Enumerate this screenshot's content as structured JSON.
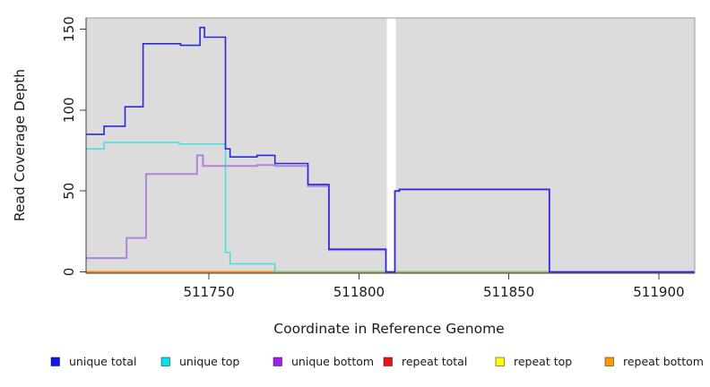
{
  "figure": {
    "background": "#ffffff",
    "plot_background": "#dcdcdc"
  },
  "chart_data": {
    "type": "line",
    "subtype": "step-after-coverage",
    "title": "",
    "xlabel": "Coordinate in Reference Genome",
    "ylabel": "Read Coverage Depth",
    "xlim": [
      511709,
      511912
    ],
    "ylim": [
      0,
      157
    ],
    "x_ticks": [
      511750,
      511800,
      511850,
      511900
    ],
    "x_tick_labels": [
      "511750",
      "511800",
      "511850",
      "511900"
    ],
    "y_ticks": [
      0,
      50,
      100,
      150
    ],
    "y_tick_labels": [
      "0",
      "50",
      "100",
      "150"
    ],
    "grid": false,
    "legend_position": "bottom",
    "gap_mask": {
      "x0": 511809.3,
      "x1": 511812.3,
      "color": "#ffffff"
    },
    "series": [
      {
        "name": "repeat total",
        "line_color": "#e01414",
        "width": 1.4,
        "points": [
          [
            511709,
            0
          ]
        ],
        "end_x": 511912
      },
      {
        "name": "repeat top",
        "line_color": "#f2f214",
        "width": 1.4,
        "points": [
          [
            511709,
            0
          ]
        ],
        "end_x": 511912
      },
      {
        "name": "repeat bottom",
        "line_color": "#ff8c00",
        "width": 1.7,
        "points": [
          [
            511709,
            0
          ]
        ],
        "end_x": 511912
      },
      {
        "name": "unlabeled green zero line",
        "line_color": "#7cc87c",
        "width": 1.4,
        "points": [
          [
            511772,
            0
          ]
        ],
        "end_x": 511912
      },
      {
        "name": "unique top",
        "line_color": "#45dde4",
        "width": 1.5,
        "points": [
          [
            511709,
            76
          ],
          [
            511715,
            80
          ],
          [
            511740,
            79
          ],
          [
            511755.5,
            12
          ],
          [
            511757,
            5
          ],
          [
            511772,
            0
          ]
        ],
        "end_x": 511772
      },
      {
        "name": "unique bottom",
        "line_color": "#b183d8",
        "width": 2.0,
        "points": [
          [
            511709,
            8.5
          ],
          [
            511722.5,
            21
          ],
          [
            511729,
            60.5
          ],
          [
            511746,
            72
          ],
          [
            511748,
            65.5
          ],
          [
            511766,
            66
          ],
          [
            511772,
            65.5
          ],
          [
            511783,
            53
          ],
          [
            511790,
            13.5
          ],
          [
            511809,
            0
          ],
          [
            511812,
            50
          ],
          [
            511813.5,
            51
          ],
          [
            511863.5,
            0
          ]
        ],
        "end_x": 511912
      },
      {
        "name": "unique total",
        "line_color": "#2828dd",
        "width": 1.6,
        "points": [
          [
            511709,
            85
          ],
          [
            511715,
            90
          ],
          [
            511722,
            102
          ],
          [
            511728,
            141
          ],
          [
            511740.5,
            140
          ],
          [
            511747,
            151
          ],
          [
            511748.5,
            145
          ],
          [
            511755.5,
            76
          ],
          [
            511757,
            71
          ],
          [
            511766,
            72
          ],
          [
            511772,
            67
          ],
          [
            511783,
            54
          ],
          [
            511790,
            14
          ],
          [
            511809,
            0
          ],
          [
            511812,
            50
          ],
          [
            511813.5,
            51
          ],
          [
            511863.5,
            0
          ]
        ],
        "end_x": 511912
      }
    ]
  },
  "legend": {
    "items": [
      {
        "label": "unique total",
        "color": "#1414f0"
      },
      {
        "label": "unique top",
        "color": "#00e5ee"
      },
      {
        "label": "unique bottom",
        "color": "#a020f0"
      },
      {
        "label": "repeat total",
        "color": "#ee1111"
      },
      {
        "label": "repeat top",
        "color": "#ffff00"
      },
      {
        "label": "repeat bottom",
        "color": "#ff9a00"
      }
    ]
  }
}
